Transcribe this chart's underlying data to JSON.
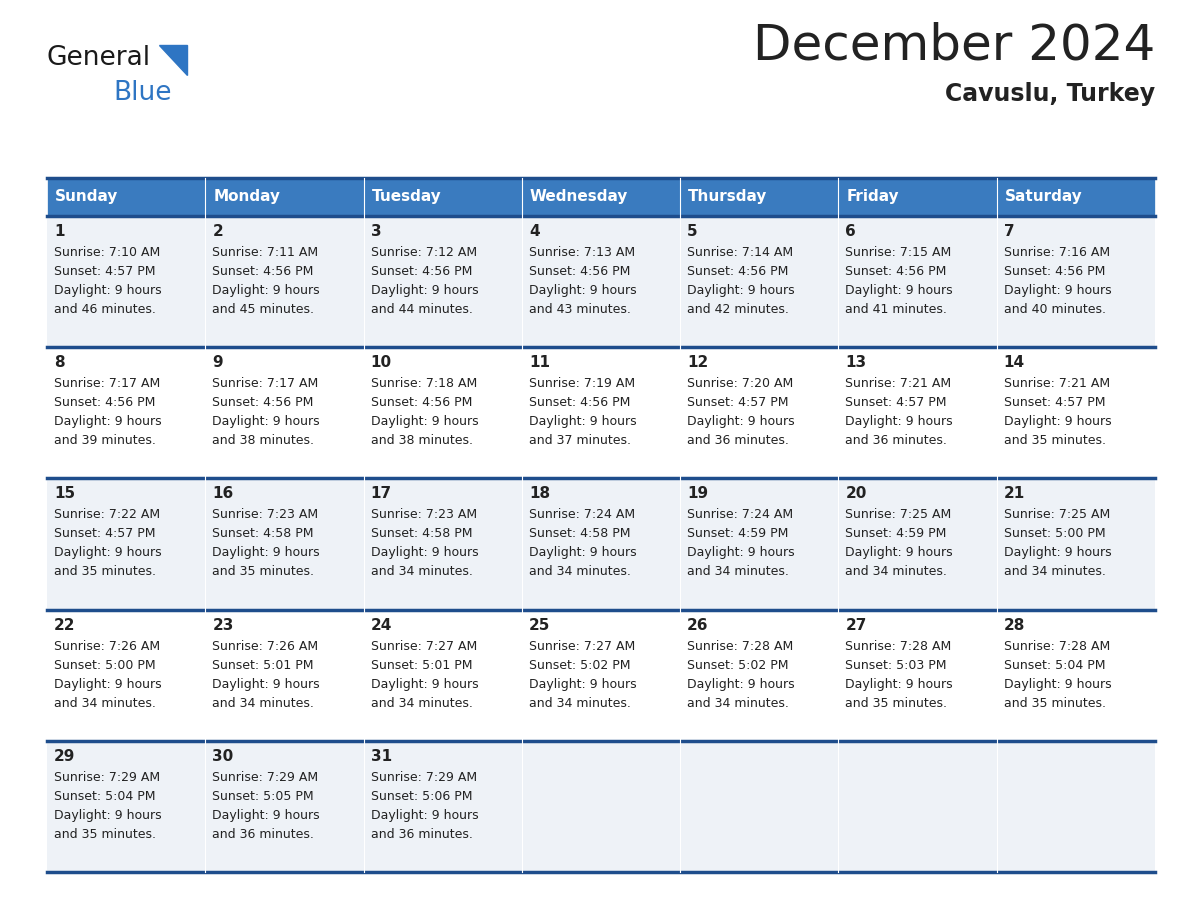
{
  "title": "December 2024",
  "subtitle": "Cavuslu, Turkey",
  "header_bg_color": "#3a7bbf",
  "header_text_color": "#ffffff",
  "cell_bg_color_odd": "#eef2f7",
  "cell_bg_color_even": "#ffffff",
  "grid_line_color": "#1e4d8c",
  "text_color": "#222222",
  "days_of_week": [
    "Sunday",
    "Monday",
    "Tuesday",
    "Wednesday",
    "Thursday",
    "Friday",
    "Saturday"
  ],
  "calendar_data": [
    [
      {
        "day": 1,
        "sunrise": "7:10 AM",
        "sunset": "4:57 PM",
        "daylight": "9 hours and 46 minutes."
      },
      {
        "day": 2,
        "sunrise": "7:11 AM",
        "sunset": "4:56 PM",
        "daylight": "9 hours and 45 minutes."
      },
      {
        "day": 3,
        "sunrise": "7:12 AM",
        "sunset": "4:56 PM",
        "daylight": "9 hours and 44 minutes."
      },
      {
        "day": 4,
        "sunrise": "7:13 AM",
        "sunset": "4:56 PM",
        "daylight": "9 hours and 43 minutes."
      },
      {
        "day": 5,
        "sunrise": "7:14 AM",
        "sunset": "4:56 PM",
        "daylight": "9 hours and 42 minutes."
      },
      {
        "day": 6,
        "sunrise": "7:15 AM",
        "sunset": "4:56 PM",
        "daylight": "9 hours and 41 minutes."
      },
      {
        "day": 7,
        "sunrise": "7:16 AM",
        "sunset": "4:56 PM",
        "daylight": "9 hours and 40 minutes."
      }
    ],
    [
      {
        "day": 8,
        "sunrise": "7:17 AM",
        "sunset": "4:56 PM",
        "daylight": "9 hours and 39 minutes."
      },
      {
        "day": 9,
        "sunrise": "7:17 AM",
        "sunset": "4:56 PM",
        "daylight": "9 hours and 38 minutes."
      },
      {
        "day": 10,
        "sunrise": "7:18 AM",
        "sunset": "4:56 PM",
        "daylight": "9 hours and 38 minutes."
      },
      {
        "day": 11,
        "sunrise": "7:19 AM",
        "sunset": "4:56 PM",
        "daylight": "9 hours and 37 minutes."
      },
      {
        "day": 12,
        "sunrise": "7:20 AM",
        "sunset": "4:57 PM",
        "daylight": "9 hours and 36 minutes."
      },
      {
        "day": 13,
        "sunrise": "7:21 AM",
        "sunset": "4:57 PM",
        "daylight": "9 hours and 36 minutes."
      },
      {
        "day": 14,
        "sunrise": "7:21 AM",
        "sunset": "4:57 PM",
        "daylight": "9 hours and 35 minutes."
      }
    ],
    [
      {
        "day": 15,
        "sunrise": "7:22 AM",
        "sunset": "4:57 PM",
        "daylight": "9 hours and 35 minutes."
      },
      {
        "day": 16,
        "sunrise": "7:23 AM",
        "sunset": "4:58 PM",
        "daylight": "9 hours and 35 minutes."
      },
      {
        "day": 17,
        "sunrise": "7:23 AM",
        "sunset": "4:58 PM",
        "daylight": "9 hours and 34 minutes."
      },
      {
        "day": 18,
        "sunrise": "7:24 AM",
        "sunset": "4:58 PM",
        "daylight": "9 hours and 34 minutes."
      },
      {
        "day": 19,
        "sunrise": "7:24 AM",
        "sunset": "4:59 PM",
        "daylight": "9 hours and 34 minutes."
      },
      {
        "day": 20,
        "sunrise": "7:25 AM",
        "sunset": "4:59 PM",
        "daylight": "9 hours and 34 minutes."
      },
      {
        "day": 21,
        "sunrise": "7:25 AM",
        "sunset": "5:00 PM",
        "daylight": "9 hours and 34 minutes."
      }
    ],
    [
      {
        "day": 22,
        "sunrise": "7:26 AM",
        "sunset": "5:00 PM",
        "daylight": "9 hours and 34 minutes."
      },
      {
        "day": 23,
        "sunrise": "7:26 AM",
        "sunset": "5:01 PM",
        "daylight": "9 hours and 34 minutes."
      },
      {
        "day": 24,
        "sunrise": "7:27 AM",
        "sunset": "5:01 PM",
        "daylight": "9 hours and 34 minutes."
      },
      {
        "day": 25,
        "sunrise": "7:27 AM",
        "sunset": "5:02 PM",
        "daylight": "9 hours and 34 minutes."
      },
      {
        "day": 26,
        "sunrise": "7:28 AM",
        "sunset": "5:02 PM",
        "daylight": "9 hours and 34 minutes."
      },
      {
        "day": 27,
        "sunrise": "7:28 AM",
        "sunset": "5:03 PM",
        "daylight": "9 hours and 35 minutes."
      },
      {
        "day": 28,
        "sunrise": "7:28 AM",
        "sunset": "5:04 PM",
        "daylight": "9 hours and 35 minutes."
      }
    ],
    [
      {
        "day": 29,
        "sunrise": "7:29 AM",
        "sunset": "5:04 PM",
        "daylight": "9 hours and 35 minutes."
      },
      {
        "day": 30,
        "sunrise": "7:29 AM",
        "sunset": "5:05 PM",
        "daylight": "9 hours and 36 minutes."
      },
      {
        "day": 31,
        "sunrise": "7:29 AM",
        "sunset": "5:06 PM",
        "daylight": "9 hours and 36 minutes."
      },
      null,
      null,
      null,
      null
    ]
  ],
  "logo_general_color": "#1a1a1a",
  "logo_blue_color": "#2e75c3",
  "logo_triangle_color": "#2e75c3"
}
